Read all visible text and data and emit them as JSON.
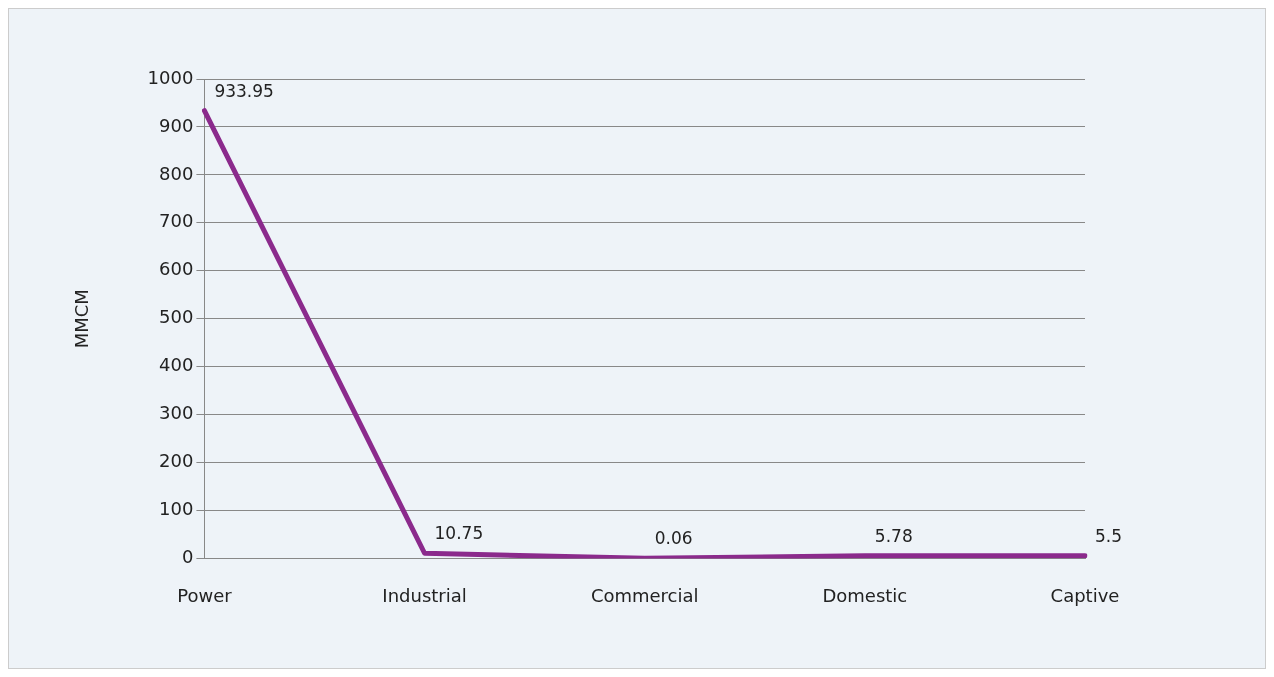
{
  "chart_data": {
    "type": "line",
    "ylabel": "MMCM",
    "categories": [
      "Power",
      "Industrial",
      "Commercial",
      "Domestic",
      "Captive"
    ],
    "series": [
      {
        "color": "#8b2a8c",
        "values": [
          933.95,
          10.75,
          0.06,
          5.78,
          5.5
        ]
      }
    ],
    "ylim": [
      0,
      1000
    ],
    "yticks": [
      0,
      100,
      200,
      300,
      400,
      500,
      600,
      700,
      800,
      900,
      1000
    ],
    "grid": "y",
    "legend": false,
    "marker": "none",
    "line_style": "solid",
    "data_labels": true
  }
}
